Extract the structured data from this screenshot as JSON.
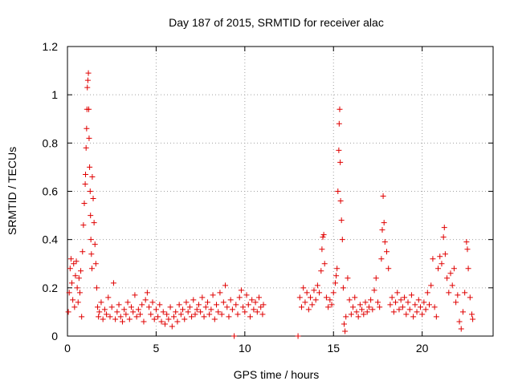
{
  "chart_data": {
    "type": "scatter",
    "title": "Day 187 of 2015, SRMTID for receiver alac",
    "xlabel": "GPS time / hours",
    "ylabel": "SRMTID / TECUs",
    "xlim": [
      0,
      24
    ],
    "ylim": [
      0,
      1.2
    ],
    "x_ticks": [
      0,
      5,
      10,
      15,
      20
    ],
    "x_tick_labels": [
      "0",
      "5",
      "10",
      "15",
      "20"
    ],
    "y_ticks": [
      0,
      0.2,
      0.4,
      0.6,
      0.8,
      1.0,
      1.2
    ],
    "y_tick_labels": [
      "0",
      "0.2",
      "0.4",
      "0.6",
      "0.8",
      "1",
      "1.2"
    ],
    "grid": true,
    "series_color": "#e00000",
    "series": [
      {
        "name": "SRMTID",
        "marker": "plus",
        "points": [
          [
            0.05,
            0.1
          ],
          [
            0.1,
            0.18
          ],
          [
            0.15,
            0.28
          ],
          [
            0.2,
            0.32
          ],
          [
            0.25,
            0.22
          ],
          [
            0.3,
            0.15
          ],
          [
            0.35,
            0.3
          ],
          [
            0.4,
            0.12
          ],
          [
            0.45,
            0.25
          ],
          [
            0.5,
            0.31
          ],
          [
            0.55,
            0.2
          ],
          [
            0.6,
            0.14
          ],
          [
            0.65,
            0.24
          ],
          [
            0.7,
            0.18
          ],
          [
            0.75,
            0.27
          ],
          [
            0.8,
            0.08
          ],
          [
            0.85,
            0.35
          ],
          [
            0.9,
            0.46
          ],
          [
            0.95,
            0.55
          ],
          [
            1.0,
            0.63
          ],
          [
            1.02,
            0.67
          ],
          [
            1.05,
            0.78
          ],
          [
            1.08,
            0.86
          ],
          [
            1.1,
            0.94
          ],
          [
            1.12,
            1.03
          ],
          [
            1.15,
            1.06
          ],
          [
            1.18,
            1.09
          ],
          [
            1.2,
            0.94
          ],
          [
            1.22,
            0.82
          ],
          [
            1.25,
            0.7
          ],
          [
            1.28,
            0.6
          ],
          [
            1.3,
            0.5
          ],
          [
            1.32,
            0.4
          ],
          [
            1.35,
            0.34
          ],
          [
            1.38,
            0.28
          ],
          [
            1.4,
            0.66
          ],
          [
            1.45,
            0.57
          ],
          [
            1.5,
            0.47
          ],
          [
            1.55,
            0.38
          ],
          [
            1.6,
            0.3
          ],
          [
            1.65,
            0.2
          ],
          [
            1.7,
            0.12
          ],
          [
            1.75,
            0.08
          ],
          [
            1.8,
            0.1
          ],
          [
            1.9,
            0.14
          ],
          [
            2.0,
            0.07
          ],
          [
            2.1,
            0.11
          ],
          [
            2.2,
            0.09
          ],
          [
            2.3,
            0.16
          ],
          [
            2.4,
            0.08
          ],
          [
            2.5,
            0.12
          ],
          [
            2.6,
            0.22
          ],
          [
            2.7,
            0.07
          ],
          [
            2.8,
            0.1
          ],
          [
            2.9,
            0.13
          ],
          [
            3.0,
            0.08
          ],
          [
            3.1,
            0.06
          ],
          [
            3.2,
            0.11
          ],
          [
            3.3,
            0.09
          ],
          [
            3.4,
            0.14
          ],
          [
            3.5,
            0.07
          ],
          [
            3.6,
            0.12
          ],
          [
            3.7,
            0.1
          ],
          [
            3.8,
            0.17
          ],
          [
            3.9,
            0.08
          ],
          [
            4.0,
            0.11
          ],
          [
            4.1,
            0.09
          ],
          [
            4.2,
            0.13
          ],
          [
            4.3,
            0.06
          ],
          [
            4.4,
            0.15
          ],
          [
            4.5,
            0.18
          ],
          [
            4.6,
            0.12
          ],
          [
            4.7,
            0.09
          ],
          [
            4.8,
            0.14
          ],
          [
            4.9,
            0.07
          ],
          [
            5.0,
            0.11
          ],
          [
            5.1,
            0.08
          ],
          [
            5.2,
            0.13
          ],
          [
            5.3,
            0.06
          ],
          [
            5.4,
            0.1
          ],
          [
            5.5,
            0.05
          ],
          [
            5.6,
            0.09
          ],
          [
            5.7,
            0.07
          ],
          [
            5.8,
            0.12
          ],
          [
            5.9,
            0.04
          ],
          [
            6.0,
            0.08
          ],
          [
            6.1,
            0.1
          ],
          [
            6.2,
            0.06
          ],
          [
            6.3,
            0.13
          ],
          [
            6.4,
            0.09
          ],
          [
            6.5,
            0.11
          ],
          [
            6.6,
            0.07
          ],
          [
            6.7,
            0.14
          ],
          [
            6.8,
            0.1
          ],
          [
            6.9,
            0.12
          ],
          [
            7.0,
            0.08
          ],
          [
            7.1,
            0.15
          ],
          [
            7.2,
            0.09
          ],
          [
            7.3,
            0.11
          ],
          [
            7.4,
            0.13
          ],
          [
            7.5,
            0.1
          ],
          [
            7.6,
            0.16
          ],
          [
            7.7,
            0.08
          ],
          [
            7.8,
            0.12
          ],
          [
            7.9,
            0.14
          ],
          [
            8.0,
            0.09
          ],
          [
            8.1,
            0.11
          ],
          [
            8.2,
            0.17
          ],
          [
            8.3,
            0.07
          ],
          [
            8.4,
            0.13
          ],
          [
            8.5,
            0.1
          ],
          [
            8.6,
            0.18
          ],
          [
            8.7,
            0.09
          ],
          [
            8.8,
            0.14
          ],
          [
            8.9,
            0.21
          ],
          [
            9.0,
            0.12
          ],
          [
            9.1,
            0.08
          ],
          [
            9.2,
            0.15
          ],
          [
            9.3,
            0.11
          ],
          [
            9.4,
            0.0
          ],
          [
            9.5,
            0.13
          ],
          [
            9.6,
            0.09
          ],
          [
            9.7,
            0.16
          ],
          [
            9.8,
            0.19
          ],
          [
            9.9,
            0.12
          ],
          [
            10.0,
            0.1
          ],
          [
            10.1,
            0.17
          ],
          [
            10.2,
            0.13
          ],
          [
            10.3,
            0.08
          ],
          [
            10.4,
            0.15
          ],
          [
            10.5,
            0.11
          ],
          [
            10.6,
            0.14
          ],
          [
            10.7,
            0.1
          ],
          [
            10.8,
            0.16
          ],
          [
            10.9,
            0.12
          ],
          [
            11.0,
            0.09
          ],
          [
            11.05,
            0.13
          ],
          [
            13.0,
            0.0
          ],
          [
            13.1,
            0.16
          ],
          [
            13.2,
            0.12
          ],
          [
            13.3,
            0.2
          ],
          [
            13.4,
            0.14
          ],
          [
            13.5,
            0.18
          ],
          [
            13.6,
            0.11
          ],
          [
            13.7,
            0.16
          ],
          [
            13.8,
            0.13
          ],
          [
            13.9,
            0.19
          ],
          [
            14.0,
            0.15
          ],
          [
            14.1,
            0.21
          ],
          [
            14.2,
            0.18
          ],
          [
            14.3,
            0.27
          ],
          [
            14.35,
            0.36
          ],
          [
            14.4,
            0.41
          ],
          [
            14.45,
            0.42
          ],
          [
            14.5,
            0.3
          ],
          [
            14.6,
            0.16
          ],
          [
            14.7,
            0.12
          ],
          [
            14.8,
            0.15
          ],
          [
            14.9,
            0.13
          ],
          [
            15.0,
            0.18
          ],
          [
            15.1,
            0.22
          ],
          [
            15.15,
            0.25
          ],
          [
            15.2,
            0.28
          ],
          [
            15.25,
            0.6
          ],
          [
            15.3,
            0.77
          ],
          [
            15.32,
            0.88
          ],
          [
            15.35,
            0.94
          ],
          [
            15.38,
            0.72
          ],
          [
            15.4,
            0.56
          ],
          [
            15.45,
            0.48
          ],
          [
            15.5,
            0.4
          ],
          [
            15.55,
            0.2
          ],
          [
            15.6,
            0.05
          ],
          [
            15.65,
            0.02
          ],
          [
            15.7,
            0.08
          ],
          [
            15.8,
            0.24
          ],
          [
            15.9,
            0.15
          ],
          [
            16.0,
            0.09
          ],
          [
            16.1,
            0.12
          ],
          [
            16.2,
            0.16
          ],
          [
            16.3,
            0.1
          ],
          [
            16.4,
            0.08
          ],
          [
            16.5,
            0.13
          ],
          [
            16.6,
            0.11
          ],
          [
            16.7,
            0.09
          ],
          [
            16.8,
            0.14
          ],
          [
            16.9,
            0.1
          ],
          [
            17.0,
            0.12
          ],
          [
            17.1,
            0.15
          ],
          [
            17.2,
            0.11
          ],
          [
            17.3,
            0.19
          ],
          [
            17.4,
            0.24
          ],
          [
            17.5,
            0.14
          ],
          [
            17.6,
            0.12
          ],
          [
            17.7,
            0.32
          ],
          [
            17.75,
            0.44
          ],
          [
            17.8,
            0.58
          ],
          [
            17.85,
            0.47
          ],
          [
            17.9,
            0.39
          ],
          [
            18.0,
            0.35
          ],
          [
            18.1,
            0.28
          ],
          [
            18.2,
            0.13
          ],
          [
            18.3,
            0.16
          ],
          [
            18.4,
            0.1
          ],
          [
            18.5,
            0.14
          ],
          [
            18.6,
            0.18
          ],
          [
            18.7,
            0.11
          ],
          [
            18.8,
            0.15
          ],
          [
            18.9,
            0.12
          ],
          [
            19.0,
            0.16
          ],
          [
            19.1,
            0.09
          ],
          [
            19.2,
            0.14
          ],
          [
            19.3,
            0.11
          ],
          [
            19.4,
            0.17
          ],
          [
            19.5,
            0.08
          ],
          [
            19.6,
            0.13
          ],
          [
            19.7,
            0.1
          ],
          [
            19.8,
            0.15
          ],
          [
            19.9,
            0.12
          ],
          [
            20.0,
            0.09
          ],
          [
            20.1,
            0.14
          ],
          [
            20.2,
            0.11
          ],
          [
            20.3,
            0.18
          ],
          [
            20.4,
            0.13
          ],
          [
            20.5,
            0.21
          ],
          [
            20.6,
            0.32
          ],
          [
            20.7,
            0.12
          ],
          [
            20.8,
            0.08
          ],
          [
            20.9,
            0.28
          ],
          [
            21.0,
            0.33
          ],
          [
            21.1,
            0.3
          ],
          [
            21.2,
            0.41
          ],
          [
            21.25,
            0.45
          ],
          [
            21.3,
            0.34
          ],
          [
            21.4,
            0.24
          ],
          [
            21.5,
            0.18
          ],
          [
            21.6,
            0.26
          ],
          [
            21.7,
            0.21
          ],
          [
            21.8,
            0.28
          ],
          [
            21.9,
            0.14
          ],
          [
            22.0,
            0.17
          ],
          [
            22.1,
            0.06
          ],
          [
            22.2,
            0.03
          ],
          [
            22.3,
            0.1
          ],
          [
            22.4,
            0.18
          ],
          [
            22.5,
            0.39
          ],
          [
            22.55,
            0.36
          ],
          [
            22.6,
            0.28
          ],
          [
            22.7,
            0.16
          ],
          [
            22.8,
            0.09
          ],
          [
            22.85,
            0.07
          ]
        ]
      }
    ]
  }
}
